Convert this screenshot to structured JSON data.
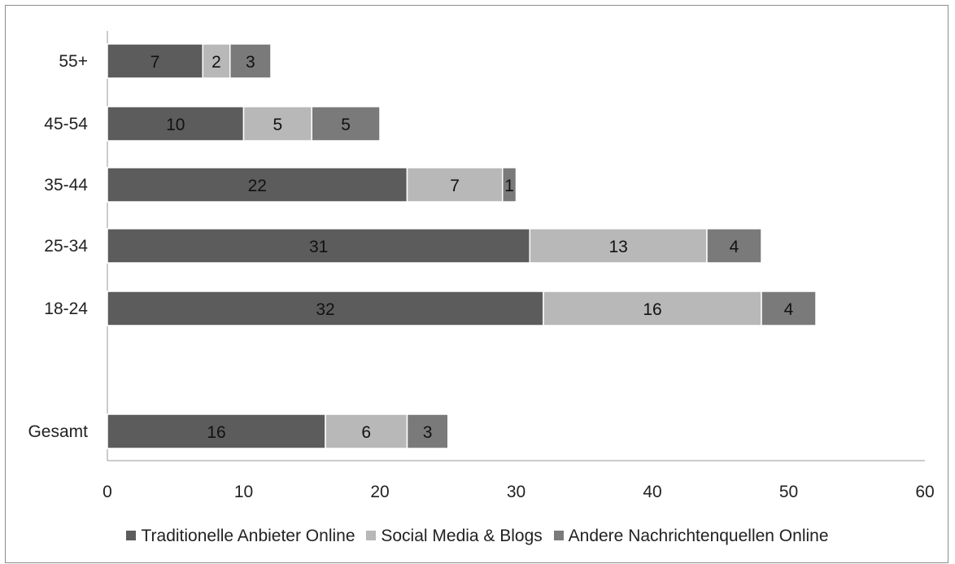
{
  "chart_data": {
    "type": "bar",
    "orientation": "horizontal",
    "stacked": true,
    "title": "",
    "xlabel": "",
    "ylabel": "",
    "xlim": [
      0,
      60
    ],
    "xticks": [
      0,
      10,
      20,
      30,
      40,
      50,
      60
    ],
    "grid": false,
    "legend_position": "bottom",
    "categories": [
      "55+",
      "45-54",
      "35-44",
      "25-34",
      "18-24",
      "Gesamt"
    ],
    "series": [
      {
        "name": "Traditionelle Anbieter Online",
        "color": "#5c5c5c",
        "values": [
          7,
          10,
          22,
          31,
          32,
          16
        ]
      },
      {
        "name": "Social Media & Blogs",
        "color": "#b8b8b8",
        "values": [
          2,
          5,
          7,
          13,
          16,
          6
        ]
      },
      {
        "name": "Andere Nachrichtenquellen Online",
        "color": "#7a7a7a",
        "values": [
          3,
          5,
          1,
          4,
          4,
          3
        ]
      }
    ]
  }
}
